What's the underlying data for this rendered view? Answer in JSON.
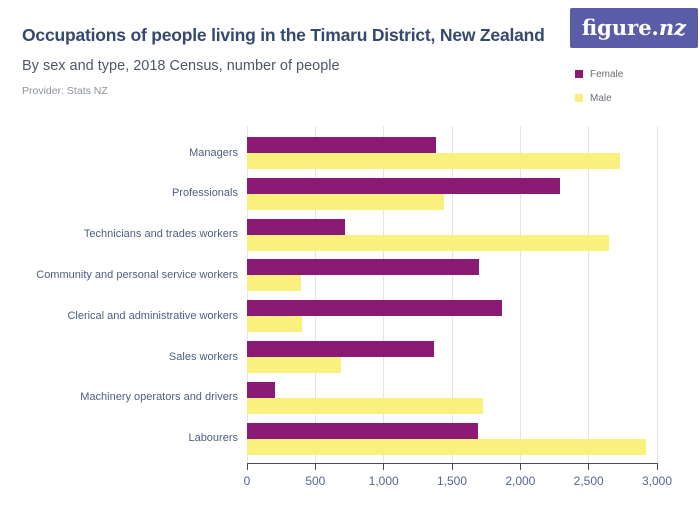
{
  "header": {
    "title": "Occupations of people living in the Timaru District, New Zealand",
    "subtitle": "By sex and type, 2018 Census, number of people",
    "provider": "Provider: Stats NZ",
    "logo": {
      "text_main": "figure.",
      "text_suffix": "nz",
      "bg": "#5B5CA7",
      "text_color": "#FFFFFF"
    }
  },
  "chart_data": {
    "type": "bar",
    "orientation": "horizontal",
    "title": "Occupations of people living in the Timaru District, New Zealand",
    "subtitle": "By sex and type, 2018 Census, number of people",
    "categories": [
      "Managers",
      "Professionals",
      "Technicians and trades workers",
      "Community and personal service workers",
      "Clerical and administrative workers",
      "Sales workers",
      "Machinery operators and drivers",
      "Labourers"
    ],
    "series": [
      {
        "name": "Female",
        "color": "#8B1A74",
        "values": [
          1386,
          2289,
          717,
          1695,
          1869,
          1368,
          204,
          1689
        ]
      },
      {
        "name": "Male",
        "color": "#F9F07E",
        "values": [
          2727,
          1443,
          2652,
          393,
          405,
          687,
          1725,
          2919
        ]
      }
    ],
    "xlim": [
      0,
      3000
    ],
    "xticks": {
      "values": [
        0,
        500,
        1000,
        1500,
        2000,
        2500,
        3000
      ],
      "labels": [
        "0",
        "500",
        "1,000",
        "1,500",
        "2,000",
        "2,500",
        "3,000"
      ]
    },
    "grid": "vertical-only",
    "legend_position": "top-right"
  },
  "style": {
    "title_color": "#35496E",
    "subtitle_color": "#4E5866",
    "provider_color": "#8D939B",
    "category_label": "#4D6083",
    "tick_label": "#54688C",
    "legend_text": "#6B7076",
    "gridline": "#E4E4E4",
    "axis_line": "#4D4D4D",
    "female": "#8B1A74",
    "male": "#F9F07E",
    "logo_bg": "#5B5CA7"
  }
}
